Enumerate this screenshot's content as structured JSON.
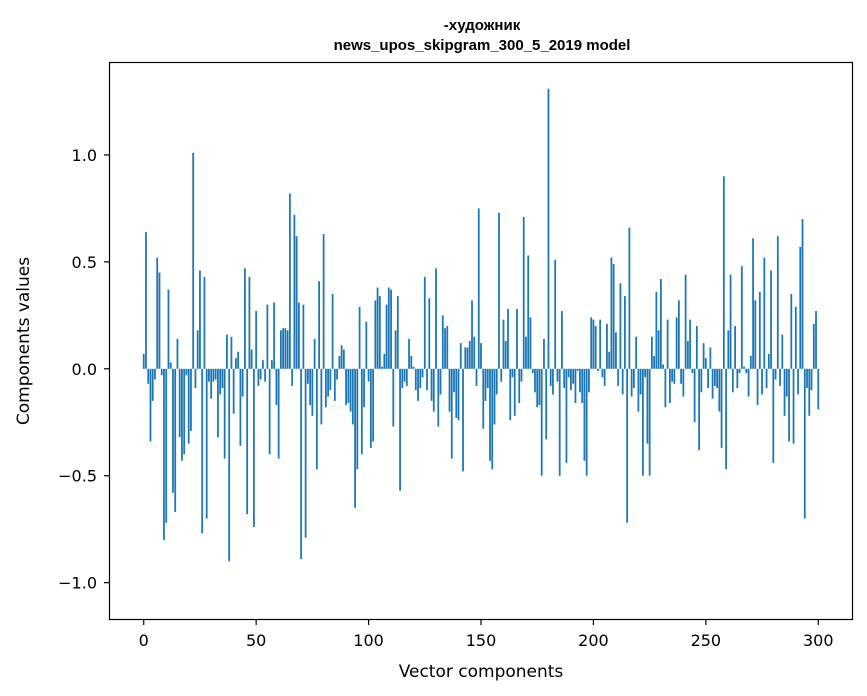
{
  "chart_data": {
    "type": "bar",
    "title": "-художник",
    "subtitle": "news_upos_skipgram_300_5_2019 model",
    "xlabel": "Vector components",
    "ylabel": "Components values",
    "xlim": [
      -15,
      315
    ],
    "ylim": [
      -1.17,
      1.43
    ],
    "xticks": [
      0,
      50,
      100,
      150,
      200,
      250,
      300
    ],
    "xtick_labels": [
      "0",
      "50",
      "100",
      "150",
      "200",
      "250",
      "300"
    ],
    "yticks": [
      -1.0,
      -0.5,
      0.0,
      0.5,
      1.0
    ],
    "ytick_labels": [
      "−1.0",
      "−0.5",
      "0.0",
      "0.5",
      "1.0"
    ],
    "bar_color": "#1f77b4",
    "grid": false,
    "legend": "none",
    "values": [
      0.07,
      0.64,
      -0.07,
      -0.34,
      -0.15,
      -0.05,
      0.52,
      0.45,
      -0.03,
      -0.8,
      -0.72,
      0.37,
      0.03,
      -0.58,
      -0.67,
      0.14,
      -0.32,
      -0.43,
      -0.4,
      -0.03,
      -0.35,
      -0.29,
      1.01,
      -0.09,
      0.18,
      0.46,
      -0.77,
      0.43,
      -0.7,
      -0.06,
      -0.14,
      -0.06,
      -0.05,
      -0.32,
      -0.12,
      -0.09,
      -0.42,
      0.16,
      -0.9,
      0.15,
      -0.21,
      0.05,
      0.08,
      -0.36,
      -0.13,
      0.47,
      -0.68,
      0.43,
      0.09,
      -0.74,
      0.27,
      -0.08,
      -0.05,
      0.04,
      -0.06,
      0.3,
      -0.4,
      0.04,
      0.31,
      -0.17,
      -0.42,
      0.18,
      0.19,
      0.19,
      0.18,
      0.82,
      -0.08,
      0.72,
      0.62,
      0.31,
      -0.89,
      0.3,
      -0.79,
      -0.07,
      -0.17,
      -0.22,
      0.14,
      -0.47,
      0.41,
      -0.26,
      0.63,
      -0.18,
      -0.13,
      -0.1,
      0.35,
      -0.15,
      -0.05,
      0.06,
      0.11,
      0.09,
      -0.17,
      -0.16,
      -0.2,
      -0.26,
      -0.65,
      -0.47,
      0.29,
      -0.4,
      -0.18,
      0.22,
      -0.06,
      -0.37,
      -0.34,
      0.32,
      0.38,
      0.34,
      0.01,
      0.07,
      0.3,
      0.38,
      0.37,
      -0.27,
      0.18,
      0.34,
      -0.57,
      -0.09,
      -0.06,
      -0.08,
      0.14,
      0.06,
      0.01,
      -0.1,
      -0.15,
      -0.09,
      -0.04,
      0.43,
      -0.1,
      0.33,
      -0.15,
      -0.2,
      0.47,
      -0.27,
      -0.12,
      0.25,
      0.19,
      0.2,
      -0.2,
      -0.42,
      -0.11,
      -0.23,
      -0.24,
      0.12,
      -0.48,
      0.1,
      0.1,
      0.13,
      0.32,
      0.15,
      -0.08,
      0.75,
      0.12,
      -0.28,
      -0.15,
      -0.09,
      -0.43,
      -0.47,
      -0.26,
      -0.12,
      0.73,
      -0.06,
      0.23,
      0.13,
      0.28,
      -0.24,
      -0.04,
      -0.22,
      0.28,
      -0.16,
      -0.06,
      0.71,
      0.15,
      0.53,
      0.24,
      -0.02,
      -0.11,
      -0.18,
      -0.17,
      -0.5,
      0.14,
      -0.33,
      1.31,
      -0.08,
      -0.12,
      0.51,
      -0.06,
      -0.5,
      0.27,
      -0.09,
      -0.44,
      -0.04,
      -0.1,
      -0.07,
      -0.16,
      -0.01,
      -0.11,
      -0.16,
      -0.43,
      -0.5,
      -0.11,
      0.24,
      0.23,
      0.2,
      -0.01,
      0.23,
      -0.04,
      -0.08,
      0.21,
      0.08,
      0.52,
      0.49,
      0.17,
      -0.08,
      0.4,
      -0.12,
      0.34,
      -0.72,
      0.66,
      -0.13,
      -0.09,
      0.15,
      -0.2,
      -0.12,
      -0.5,
      -0.04,
      -0.35,
      -0.5,
      0.15,
      0.06,
      0.36,
      0.18,
      0.42,
      0.02,
      -0.18,
      0.23,
      -0.16,
      -0.06,
      -0.07,
      0.24,
      0.32,
      -0.07,
      -0.13,
      0.44,
      0.13,
      0.23,
      -0.02,
      -0.25,
      0.2,
      -0.38,
      -0.11,
      0.12,
      0.05,
      -0.09,
      0.1,
      -0.14,
      -0.08,
      -0.09,
      -0.2,
      -0.37,
      0.9,
      -0.47,
      0.18,
      0.44,
      -0.11,
      0.2,
      -0.09,
      -0.02,
      0.48,
      0.01,
      -0.02,
      -0.13,
      0.06,
      0.61,
      0.32,
      -0.17,
      0.36,
      -0.12,
      0.52,
      -0.09,
      0.07,
      0.46,
      -0.44,
      -0.05,
      0.62,
      -0.08,
      0.16,
      -0.22,
      -0.13,
      -0.34,
      0.35,
      -0.35,
      0.29,
      -0.12,
      0.57,
      0.7,
      -0.7,
      -0.09,
      -0.22,
      -0.1,
      0.21,
      0.27,
      -0.19
    ]
  }
}
